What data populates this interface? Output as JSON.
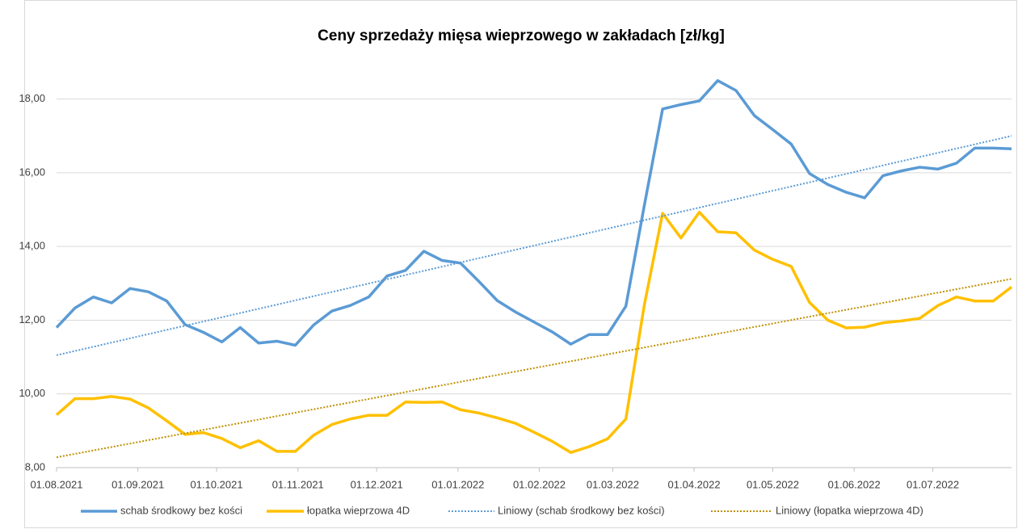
{
  "chart_data": {
    "type": "line",
    "title": "Ceny sprzedaży mięsa wieprzowego w zakładach [zł/kg]",
    "x": [
      "01.08.2021",
      "08.08.2021",
      "15.08.2021",
      "22.08.2021",
      "29.08.2021",
      "05.09.2021",
      "12.09.2021",
      "19.09.2021",
      "26.09.2021",
      "03.10.2021",
      "10.10.2021",
      "17.10.2021",
      "24.10.2021",
      "31.10.2021",
      "07.11.2021",
      "14.11.2021",
      "21.11.2021",
      "28.11.2021",
      "05.12.2021",
      "12.12.2021",
      "19.12.2021",
      "26.12.2021",
      "02.01.2022",
      "09.01.2022",
      "16.01.2022",
      "23.01.2022",
      "30.01.2022",
      "06.02.2022",
      "13.02.2022",
      "20.02.2022",
      "27.02.2022",
      "06.03.2022",
      "13.03.2022",
      "20.03.2022",
      "27.03.2022",
      "03.04.2022",
      "10.04.2022",
      "17.04.2022",
      "24.04.2022",
      "01.05.2022",
      "08.05.2022",
      "15.05.2022",
      "22.05.2022",
      "29.05.2022",
      "05.06.2022",
      "12.06.2022",
      "19.06.2022",
      "26.06.2022",
      "03.07.2022",
      "10.07.2022",
      "17.07.2022",
      "24.07.2022",
      "31.07.2022"
    ],
    "series": [
      {
        "name": "schab środkowy bez kości",
        "color": "#5b9bd5",
        "values": [
          11.8,
          12.33,
          12.63,
          12.47,
          12.86,
          12.77,
          12.52,
          11.88,
          11.67,
          11.41,
          11.8,
          11.38,
          11.43,
          11.32,
          11.87,
          12.25,
          12.4,
          12.63,
          13.2,
          13.35,
          13.87,
          13.62,
          13.55,
          13.05,
          12.53,
          12.22,
          11.95,
          11.68,
          11.35,
          11.61,
          11.61,
          12.38,
          15.1,
          17.73,
          17.85,
          17.95,
          18.5,
          18.23,
          17.55,
          17.17,
          16.78,
          15.98,
          15.68,
          15.47,
          15.32,
          15.92,
          16.05,
          16.15,
          16.1,
          16.26,
          16.67,
          16.67,
          16.65
        ]
      },
      {
        "name": "łopatka wieprzowa 4D",
        "color": "#ffc000",
        "values": [
          9.43,
          9.87,
          9.87,
          9.93,
          9.86,
          9.62,
          9.27,
          8.9,
          8.95,
          8.79,
          8.54,
          8.73,
          8.44,
          8.44,
          8.88,
          9.17,
          9.32,
          9.42,
          9.42,
          9.78,
          9.77,
          9.78,
          9.57,
          9.48,
          9.35,
          9.2,
          8.96,
          8.71,
          8.41,
          8.57,
          8.78,
          9.32,
          12.4,
          14.9,
          14.23,
          14.93,
          14.4,
          14.37,
          13.9,
          13.65,
          13.46,
          12.48,
          12.0,
          11.79,
          11.81,
          11.93,
          11.98,
          12.05,
          12.4,
          12.63,
          12.52,
          12.52,
          12.9
        ]
      },
      {
        "name": "Liniowy (schab środkowy bez kości)",
        "color": "#5b9bd5",
        "dotted": true,
        "x": [
          "01.08.2021",
          "31.07.2022"
        ],
        "values": [
          11.05,
          17.0
        ]
      },
      {
        "name": "Liniowy (łopatka wieprzowa 4D)",
        "color": "#bf9000",
        "dotted": true,
        "x": [
          "01.08.2021",
          "31.07.2022"
        ],
        "values": [
          8.28,
          13.12
        ]
      }
    ],
    "xlim": [
      "01.08.2021",
      "31.07.2022"
    ],
    "xticks": [
      "01.08.2021",
      "01.09.2021",
      "01.10.2021",
      "01.11.2021",
      "01.12.2021",
      "01.01.2022",
      "01.02.2022",
      "01.03.2022",
      "01.04.2022",
      "01.05.2022",
      "01.06.2022",
      "01.07.2022"
    ],
    "ylim": [
      8,
      19
    ],
    "yticks": [
      {
        "value": 8,
        "label": "8,00"
      },
      {
        "value": 10,
        "label": "10,00"
      },
      {
        "value": 12,
        "label": "12,00"
      },
      {
        "value": 14,
        "label": "14,00"
      },
      {
        "value": 16,
        "label": "16,00"
      },
      {
        "value": 18,
        "label": "18,00"
      }
    ],
    "grid": true
  }
}
